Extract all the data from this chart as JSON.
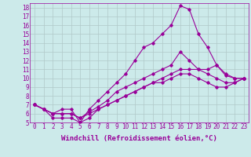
{
  "xlabel": "Windchill (Refroidissement éolien,°C)",
  "background_color": "#cceaea",
  "line_color": "#990099",
  "xlim": [
    -0.5,
    23.5
  ],
  "ylim": [
    5,
    18.5
  ],
  "xticks": [
    0,
    1,
    2,
    3,
    4,
    5,
    6,
    7,
    8,
    9,
    10,
    11,
    12,
    13,
    14,
    15,
    16,
    17,
    18,
    19,
    20,
    21,
    22,
    23
  ],
  "yticks": [
    5,
    6,
    7,
    8,
    9,
    10,
    11,
    12,
    13,
    14,
    15,
    16,
    17,
    18
  ],
  "grid_color": "#b0c8c8",
  "lines": [
    {
      "x": [
        0,
        1,
        2,
        3,
        4,
        5,
        6,
        7,
        8,
        9,
        10,
        11,
        12,
        13,
        14,
        15,
        16,
        17,
        18,
        19,
        20,
        21,
        22,
        23
      ],
      "y": [
        7,
        6.5,
        6,
        6.5,
        6.5,
        5,
        6.5,
        7.5,
        8.5,
        9.5,
        10.5,
        12,
        13.5,
        14,
        15,
        16,
        18.2,
        17.8,
        15,
        13.5,
        11.5,
        10.3,
        10,
        10
      ]
    },
    {
      "x": [
        0,
        1,
        2,
        3,
        4,
        5,
        6,
        7,
        8,
        9,
        10,
        11,
        12,
        13,
        14,
        15,
        16,
        17,
        18,
        19,
        20,
        21,
        22,
        23
      ],
      "y": [
        7,
        6.5,
        6,
        6,
        6,
        5.5,
        6.2,
        6.8,
        7.5,
        8.5,
        9,
        9.5,
        10,
        10.5,
        11,
        11.5,
        13,
        12,
        11,
        11,
        11.5,
        10.5,
        10,
        10
      ]
    },
    {
      "x": [
        0,
        1,
        2,
        3,
        4,
        5,
        6,
        7,
        8,
        9,
        10,
        11,
        12,
        13,
        14,
        15,
        16,
        17,
        18,
        19,
        20,
        21,
        22,
        23
      ],
      "y": [
        7,
        6.5,
        6,
        6,
        6,
        5.5,
        6,
        6.5,
        7,
        7.5,
        8,
        8.5,
        9,
        9.5,
        10,
        10.5,
        11,
        11,
        11,
        10.5,
        10,
        9.5,
        9.5,
        10
      ]
    },
    {
      "x": [
        0,
        1,
        2,
        3,
        4,
        5,
        6,
        7,
        8,
        9,
        10,
        11,
        12,
        13,
        14,
        15,
        16,
        17,
        18,
        19,
        20,
        21,
        22,
        23
      ],
      "y": [
        7,
        6.5,
        5.5,
        5.5,
        5.5,
        5,
        5.5,
        6.5,
        7,
        7.5,
        8,
        8.5,
        9,
        9.5,
        9.5,
        10,
        10.5,
        10.5,
        10,
        9.5,
        9,
        9,
        9.5,
        10
      ]
    }
  ],
  "marker": "D",
  "marker_size": 1.8,
  "linewidth": 0.8,
  "xlabel_fontsize": 6.5,
  "tick_fontsize": 5.5,
  "font_family": "monospace"
}
